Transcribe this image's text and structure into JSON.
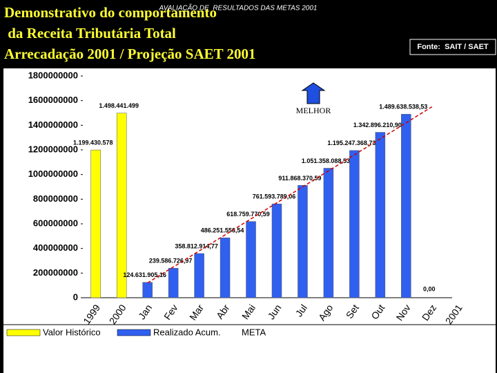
{
  "chart_data": {
    "type": "bar",
    "title": [
      "Demonstrativo do comportamento",
      " da Receita Tributária Total",
      "Arrecadação 2001 / Projeção SAET 2001"
    ],
    "subtitle": "AVALIAÇÃO DE  RESULTADOS DAS METAS 2001",
    "source": "Fonte:  SAIT / SAET",
    "annotation": "MELHOR",
    "categories": [
      "1999",
      "2000",
      "Jan",
      "Fev",
      "Mar",
      "Abr",
      "Mai",
      "Jun",
      "Jul",
      "Ago",
      "Set",
      "Out",
      "Nov",
      "Dez",
      "2001"
    ],
    "ylim": [
      0,
      1800000000
    ],
    "yticks": [
      0,
      200000000,
      400000000,
      600000000,
      800000000,
      1000000000,
      1200000000,
      1400000000,
      1600000000,
      1800000000
    ],
    "series": [
      {
        "name": "Valor Histórico",
        "type": "bar",
        "color": "#ffff00",
        "values": [
          1199430578,
          1498441499,
          null,
          null,
          null,
          null,
          null,
          null,
          null,
          null,
          null,
          null,
          null,
          null,
          null
        ],
        "value_labels": [
          "1.199.430.578",
          "1.498.441.499",
          null,
          null,
          null,
          null,
          null,
          null,
          null,
          null,
          null,
          null,
          null,
          null,
          null
        ]
      },
      {
        "name": "Realizado Acum.",
        "type": "bar",
        "color": "#3060f0",
        "values": [
          null,
          null,
          124631905.16,
          239586726.97,
          358812914.77,
          486251556.54,
          618759770.59,
          761593789.06,
          911868370.59,
          1051358088.53,
          1195247368.73,
          1342896210.9,
          1489638538.53,
          0,
          null
        ],
        "value_labels": [
          null,
          null,
          "124.631.905,16",
          "239.586.726,97",
          "358.812.914,77",
          "486.251.556,54",
          "618.759.770,59",
          "761.593.789,06",
          "911.868.370,59",
          "1.051.358.088,53",
          "1.195.247.368,73",
          "1.342.896.210,90",
          "1.489.638.538,53",
          "0,00",
          null
        ]
      },
      {
        "name": "META",
        "type": "line",
        "color": "#cc0000",
        "dashed": true,
        "values": [
          null,
          null,
          120000000,
          250000000,
          380000000,
          510000000,
          640000000,
          770000000,
          900000000,
          1030000000,
          1160000000,
          1290000000,
          1420000000,
          1550000000,
          null
        ]
      }
    ]
  }
}
